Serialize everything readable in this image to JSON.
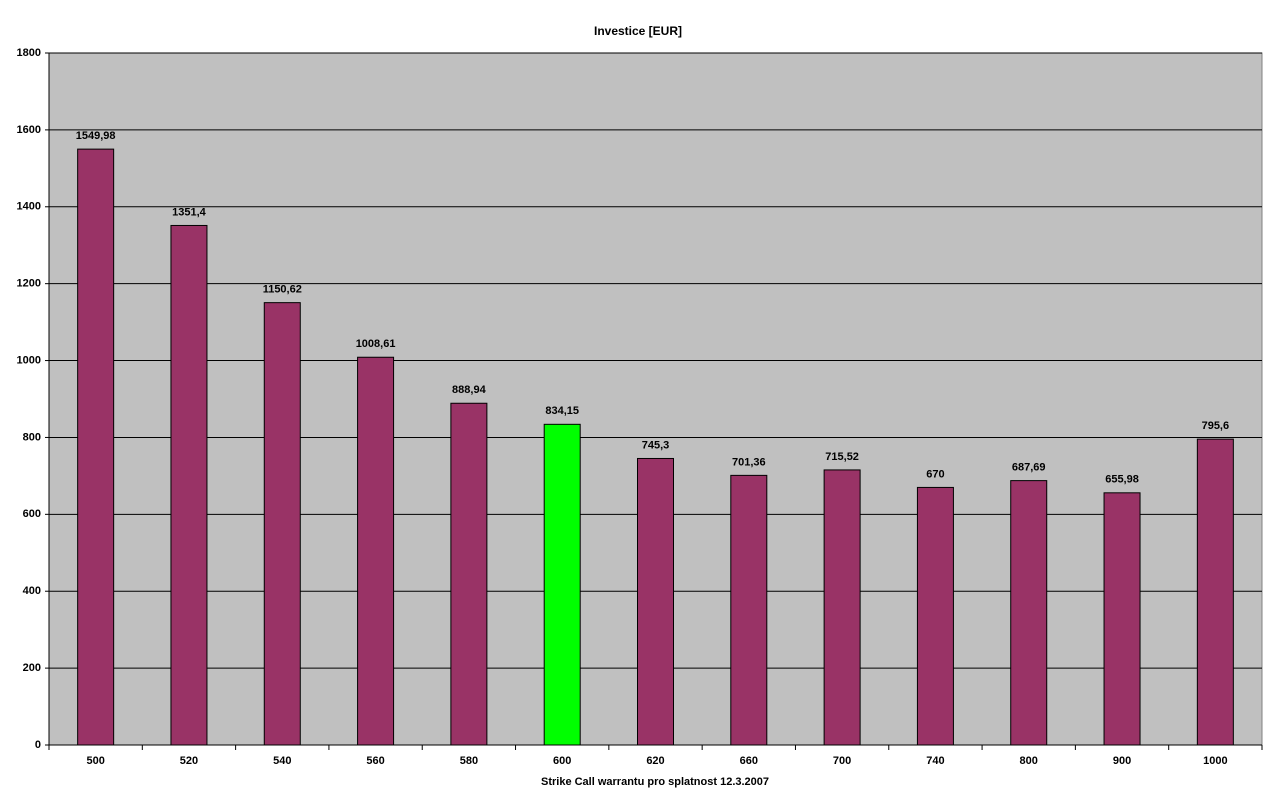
{
  "chart_data": {
    "type": "bar",
    "title": "Investice [EUR]",
    "x_label": "Strike Call warrantu pro splatnost 12.3.2007",
    "categories": [
      "500",
      "520",
      "540",
      "560",
      "580",
      "600",
      "620",
      "660",
      "700",
      "740",
      "800",
      "900",
      "1000"
    ],
    "values": [
      1549.98,
      1351.4,
      1150.62,
      1008.61,
      888.94,
      834.15,
      745.3,
      701.36,
      715.52,
      670,
      687.69,
      655.98,
      795.6
    ],
    "value_labels": [
      "1549,98",
      "1351,4",
      "1150,62",
      "1008,61",
      "888,94",
      "834,15",
      "745,3",
      "701,36",
      "715,52",
      "670",
      "687,69",
      "655,98",
      "795,6"
    ],
    "colors": [
      "#993366",
      "#993366",
      "#993366",
      "#993366",
      "#993366",
      "#00ff00",
      "#993366",
      "#993366",
      "#993366",
      "#993366",
      "#993366",
      "#993366",
      "#993366"
    ],
    "ylim": [
      0,
      1800
    ],
    "yticks": [
      0,
      200,
      400,
      600,
      800,
      1000,
      1200,
      1400,
      1600,
      1800
    ],
    "grid": true
  }
}
